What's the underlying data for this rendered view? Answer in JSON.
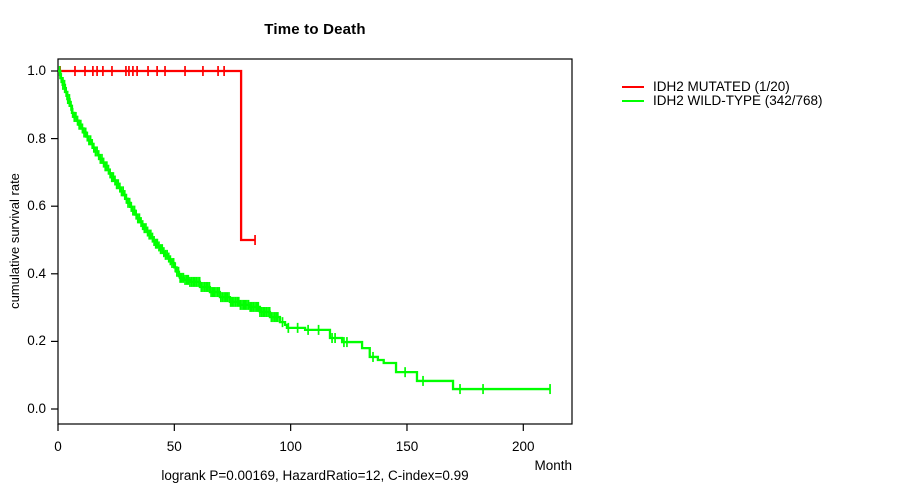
{
  "chart_data": {
    "type": "line",
    "subtype": "kaplan-meier-step",
    "title": "Time to Death",
    "xlabel": "Month",
    "ylabel": "cumulative survival rate",
    "footnote": "logrank P=0.00169, HazardRatio=12, C-index=0.99",
    "xlim": [
      0,
      221
    ],
    "ylim": [
      0,
      1.04
    ],
    "grid": false,
    "legend_position": "top-right-outside",
    "x_ticks": [
      {
        "label": "0",
        "value": 0
      },
      {
        "label": "50",
        "value": 50
      },
      {
        "label": "100",
        "value": 100
      },
      {
        "label": "150",
        "value": 150
      },
      {
        "label": "200",
        "value": 200
      }
    ],
    "y_ticks": [
      {
        "label": "0.0",
        "value": 0.0
      },
      {
        "label": "0.2",
        "value": 0.2
      },
      {
        "label": "0.4",
        "value": 0.4
      },
      {
        "label": "0.6",
        "value": 0.6
      },
      {
        "label": "0.8",
        "value": 0.8
      },
      {
        "label": "1.0",
        "value": 1.0
      }
    ],
    "series": [
      {
        "id": "idh2-mutated",
        "name": "IDH2 MUTATED (1/20)",
        "color": "#ff0000",
        "steps": [
          [
            0,
            1.0
          ],
          [
            78.7,
            0.5
          ]
        ],
        "end_x": 84.7,
        "censor_x": [
          0.9,
          7.3,
          11.6,
          15,
          16.8,
          19.3,
          23.2,
          29.2,
          30.5,
          32.2,
          34,
          38.7,
          42.6,
          46,
          54.6,
          62.3,
          68.8,
          71.4,
          84.7
        ]
      },
      {
        "id": "idh2-wild-type",
        "name": "IDH2 WILD-TYPE (342/768)",
        "color": "#00ff00",
        "steps": [
          [
            0,
            1.0
          ],
          [
            1,
            0.979
          ],
          [
            2,
            0.959
          ],
          [
            3,
            0.938
          ],
          [
            4,
            0.917
          ],
          [
            5,
            0.897
          ],
          [
            6,
            0.876
          ],
          [
            7,
            0.864
          ],
          [
            8,
            0.853
          ],
          [
            9,
            0.841
          ],
          [
            10,
            0.83
          ],
          [
            11,
            0.818
          ],
          [
            12,
            0.806
          ],
          [
            13,
            0.795
          ],
          [
            14,
            0.784
          ],
          [
            15,
            0.773
          ],
          [
            16,
            0.762
          ],
          [
            17,
            0.751
          ],
          [
            18,
            0.74
          ],
          [
            19,
            0.729
          ],
          [
            20,
            0.718
          ],
          [
            21,
            0.708
          ],
          [
            22,
            0.697
          ],
          [
            23,
            0.686
          ],
          [
            24,
            0.676
          ],
          [
            25,
            0.665
          ],
          [
            26,
            0.655
          ],
          [
            27,
            0.644
          ],
          [
            28,
            0.633
          ],
          [
            29,
            0.622
          ],
          [
            30,
            0.61
          ],
          [
            31,
            0.598
          ],
          [
            32,
            0.587
          ],
          [
            33,
            0.575
          ],
          [
            34,
            0.564
          ],
          [
            35,
            0.553
          ],
          [
            36,
            0.544
          ],
          [
            37,
            0.535
          ],
          [
            38,
            0.525
          ],
          [
            39,
            0.516
          ],
          [
            40,
            0.507
          ],
          [
            41,
            0.497
          ],
          [
            42,
            0.489
          ],
          [
            43,
            0.481
          ],
          [
            44,
            0.473
          ],
          [
            45,
            0.464
          ],
          [
            46,
            0.456
          ],
          [
            47,
            0.448
          ],
          [
            48,
            0.44
          ],
          [
            49,
            0.432
          ],
          [
            50,
            0.419
          ],
          [
            51,
            0.406
          ],
          [
            52,
            0.393
          ],
          [
            52.4,
            0.388
          ],
          [
            54,
            0.382
          ],
          [
            56.7,
            0.376
          ],
          [
            61,
            0.361
          ],
          [
            65.3,
            0.346
          ],
          [
            69.6,
            0.331
          ],
          [
            73.9,
            0.317
          ],
          [
            78.2,
            0.308
          ],
          [
            82.5,
            0.302
          ],
          [
            86.8,
            0.287
          ],
          [
            91.1,
            0.272
          ],
          [
            95.4,
            0.257
          ],
          [
            97.6,
            0.249
          ],
          [
            98.4,
            0.24
          ],
          [
            106.2,
            0.234
          ],
          [
            116.9,
            0.21
          ],
          [
            122.1,
            0.198
          ],
          [
            130.7,
            0.18
          ],
          [
            134,
            0.154
          ],
          [
            137.5,
            0.145
          ],
          [
            140,
            0.136
          ],
          [
            145.3,
            0.109
          ],
          [
            154.3,
            0.083
          ],
          [
            169.8,
            0.059
          ]
        ],
        "end_x": 211.5,
        "censor_dense": {
          "from": 0.7,
          "to": 95,
          "step": 0.7
        },
        "censor_x": [
          96.5,
          99,
          103,
          107.5,
          112,
          117.8,
          119.1,
          122.9,
          124.2,
          135.4,
          149.2,
          156.9,
          172.8,
          182.7,
          211.5
        ]
      }
    ]
  }
}
